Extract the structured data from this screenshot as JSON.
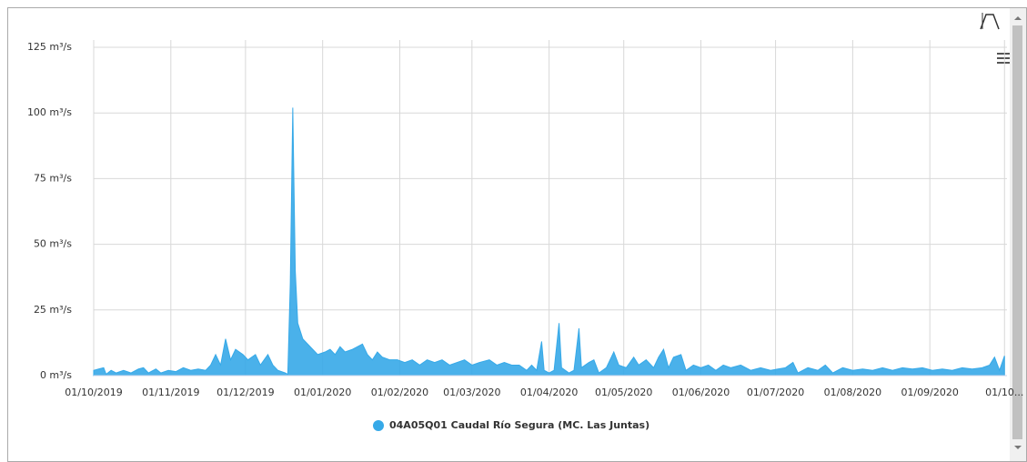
{
  "chart_data": {
    "type": "area",
    "x": [
      "2019-10-01",
      "2019-10-03",
      "2019-10-05",
      "2019-10-06",
      "2019-10-08",
      "2019-10-10",
      "2019-10-13",
      "2019-10-16",
      "2019-10-19",
      "2019-10-21",
      "2019-10-23",
      "2019-10-26",
      "2019-10-28",
      "2019-10-31",
      "2019-11-03",
      "2019-11-06",
      "2019-11-09",
      "2019-11-12",
      "2019-11-15",
      "2019-11-17",
      "2019-11-19",
      "2019-11-21",
      "2019-11-23",
      "2019-11-25",
      "2019-11-27",
      "2019-11-30",
      "2019-12-02",
      "2019-12-05",
      "2019-12-07",
      "2019-12-10",
      "2019-12-12",
      "2019-12-14",
      "2019-12-17",
      "2019-12-18",
      "2019-12-19",
      "2019-12-20",
      "2019-12-21",
      "2019-12-22",
      "2019-12-24",
      "2019-12-27",
      "2019-12-30",
      "2020-01-02",
      "2020-01-04",
      "2020-01-06",
      "2020-01-08",
      "2020-01-10",
      "2020-01-13",
      "2020-01-15",
      "2020-01-17",
      "2020-01-19",
      "2020-01-21",
      "2020-01-23",
      "2020-01-25",
      "2020-01-28",
      "2020-01-31",
      "2020-02-03",
      "2020-02-06",
      "2020-02-09",
      "2020-02-12",
      "2020-02-15",
      "2020-02-18",
      "2020-02-21",
      "2020-02-24",
      "2020-02-27",
      "2020-03-01",
      "2020-03-04",
      "2020-03-08",
      "2020-03-11",
      "2020-03-14",
      "2020-03-17",
      "2020-03-20",
      "2020-03-23",
      "2020-03-25",
      "2020-03-27",
      "2020-03-29",
      "2020-03-30",
      "2020-04-01",
      "2020-04-03",
      "2020-04-05",
      "2020-04-06",
      "2020-04-09",
      "2020-04-11",
      "2020-04-13",
      "2020-04-14",
      "2020-04-17",
      "2020-04-19",
      "2020-04-21",
      "2020-04-24",
      "2020-04-27",
      "2020-04-29",
      "2020-05-02",
      "2020-05-05",
      "2020-05-07",
      "2020-05-10",
      "2020-05-13",
      "2020-05-15",
      "2020-05-17",
      "2020-05-19",
      "2020-05-21",
      "2020-05-24",
      "2020-05-26",
      "2020-05-29",
      "2020-06-01",
      "2020-06-04",
      "2020-06-07",
      "2020-06-10",
      "2020-06-13",
      "2020-06-17",
      "2020-06-21",
      "2020-06-25",
      "2020-06-29",
      "2020-07-02",
      "2020-07-05",
      "2020-07-08",
      "2020-07-10",
      "2020-07-14",
      "2020-07-18",
      "2020-07-21",
      "2020-07-24",
      "2020-07-28",
      "2020-08-01",
      "2020-08-05",
      "2020-08-09",
      "2020-08-13",
      "2020-08-17",
      "2020-08-21",
      "2020-08-25",
      "2020-08-29",
      "2020-09-02",
      "2020-09-06",
      "2020-09-10",
      "2020-09-14",
      "2020-09-18",
      "2020-09-22",
      "2020-09-25",
      "2020-09-27",
      "2020-09-29",
      "2020-10-01"
    ],
    "series": [
      {
        "name": "04A05Q01 Caudal Río Segura (MC. Las Juntas)",
        "color": "#36a9e8",
        "values": [
          2,
          2.5,
          3,
          0.5,
          2,
          1,
          2,
          1,
          2.5,
          3,
          1,
          2.5,
          1,
          2,
          1.5,
          3,
          2,
          2.5,
          2,
          4,
          8,
          4,
          14,
          6,
          10,
          8,
          6,
          8,
          4,
          8,
          4,
          2,
          1,
          0.5,
          35,
          102,
          40,
          20,
          14,
          11,
          8,
          9,
          10,
          8,
          11,
          9,
          10,
          11,
          12,
          8,
          6,
          9,
          7,
          6,
          6,
          5,
          6,
          4,
          6,
          5,
          6,
          4,
          5,
          6,
          4,
          5,
          6,
          4,
          5,
          4,
          4,
          2,
          4,
          2,
          13,
          2,
          1,
          2,
          20,
          3,
          1,
          2,
          18,
          3,
          5,
          6,
          1,
          3,
          9,
          4,
          3,
          7,
          4,
          6,
          3,
          7,
          10,
          3,
          7,
          8,
          2,
          4,
          3,
          4,
          2,
          4,
          3,
          4,
          2,
          3,
          2,
          2.5,
          3,
          5,
          1,
          3,
          2,
          4,
          1,
          3,
          2,
          2.5,
          2,
          3,
          2,
          3,
          2.5,
          3,
          2,
          2.5,
          2,
          3,
          2.5,
          3,
          4,
          7,
          2,
          7.5
        ]
      }
    ],
    "xlim": [
      "2019-10-01",
      "2020-10-02"
    ],
    "xticks": [
      {
        "value": "2019-10-01",
        "label": "01/10/2019"
      },
      {
        "value": "2019-11-01",
        "label": "01/11/2019"
      },
      {
        "value": "2019-12-01",
        "label": "01/12/2019"
      },
      {
        "value": "2020-01-01",
        "label": "01/01/2020"
      },
      {
        "value": "2020-02-01",
        "label": "01/02/2020"
      },
      {
        "value": "2020-03-01",
        "label": "01/03/2020"
      },
      {
        "value": "2020-04-01",
        "label": "01/04/2020"
      },
      {
        "value": "2020-05-01",
        "label": "01/05/2020"
      },
      {
        "value": "2020-06-01",
        "label": "01/06/2020"
      },
      {
        "value": "2020-07-01",
        "label": "01/07/2020"
      },
      {
        "value": "2020-08-01",
        "label": "01/08/2020"
      },
      {
        "value": "2020-09-01",
        "label": "01/09/2020"
      },
      {
        "value": "2020-10-01",
        "label": "01/10..."
      }
    ],
    "ylim": [
      0,
      125
    ],
    "yticks": [
      {
        "value": 0,
        "label": "0 m³/s"
      },
      {
        "value": 25,
        "label": "25 m³/s"
      },
      {
        "value": 50,
        "label": "50 m³/s"
      },
      {
        "value": 75,
        "label": "75 m³/s"
      },
      {
        "value": 100,
        "label": "100 m³/s"
      },
      {
        "value": 125,
        "label": "125 m³/s"
      }
    ],
    "grid": true,
    "legend": "bottom"
  }
}
